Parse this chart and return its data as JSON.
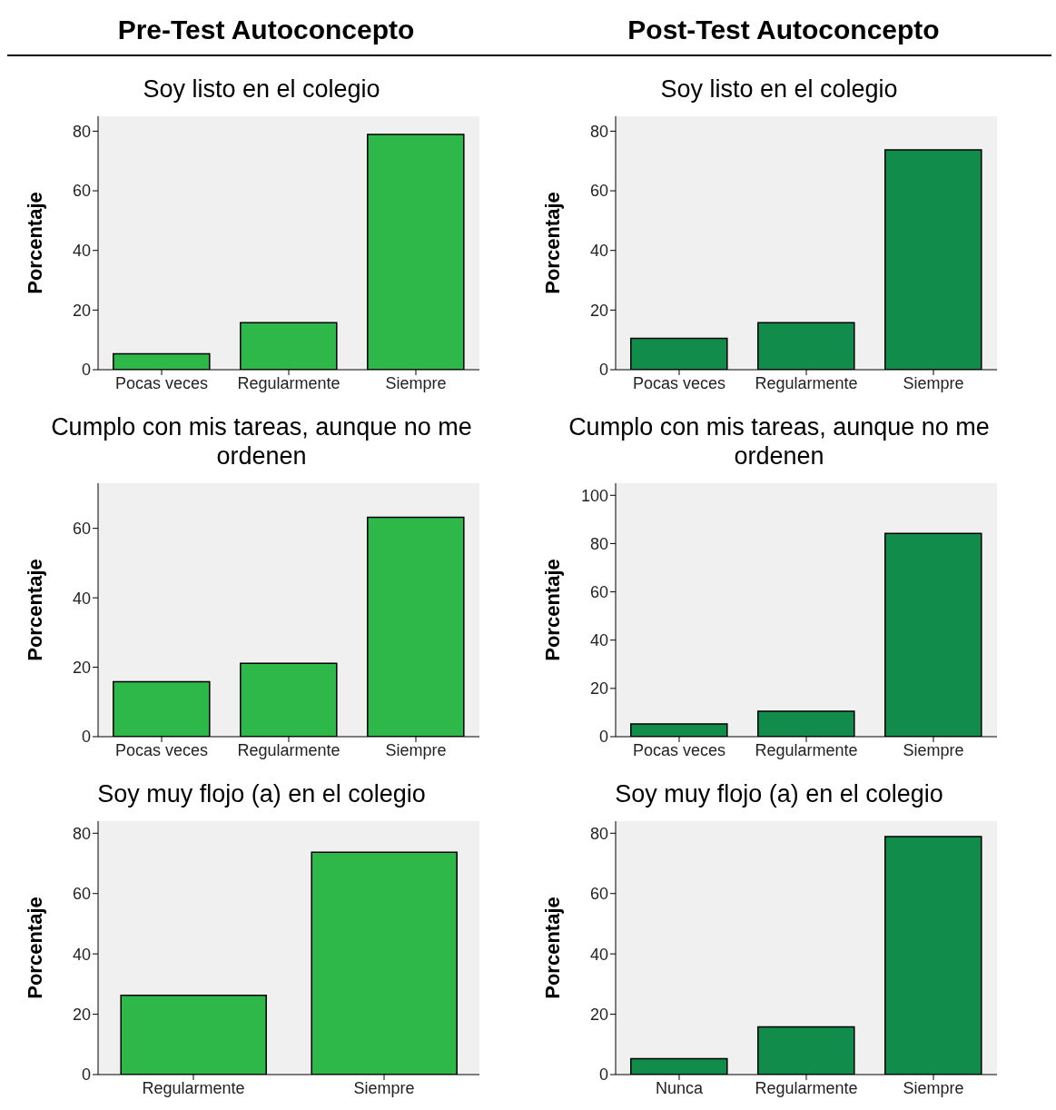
{
  "chart_data": [
    {
      "type": "bar",
      "subtitle": "Pre-Test Autoconcepto",
      "title": "Soy listo en el colegio",
      "ylabel": "Porcentaje",
      "categories": [
        "Pocas veces",
        "Regularmente",
        "Siempre"
      ],
      "values": [
        5.3,
        15.8,
        78.9
      ],
      "color": "#2eb84a",
      "ylim": [
        0,
        85
      ],
      "yticks": [
        0,
        20,
        40,
        60,
        80
      ],
      "grid": false
    },
    {
      "type": "bar",
      "subtitle": "Post-Test Autoconcepto",
      "title": "Soy listo en el colegio",
      "ylabel": "Porcentaje",
      "categories": [
        "Pocas veces",
        "Regularmente",
        "Siempre"
      ],
      "values": [
        10.5,
        15.8,
        73.7
      ],
      "color": "#118c4a",
      "ylim": [
        0,
        85
      ],
      "yticks": [
        0,
        20,
        40,
        60,
        80
      ],
      "grid": false
    },
    {
      "type": "bar",
      "title": "Cumplo con mis tareas, aunque no me ordenen",
      "ylabel": "Porcentaje",
      "categories": [
        "Pocas veces",
        "Regularmente",
        "Siempre"
      ],
      "values": [
        15.8,
        21.1,
        63.2
      ],
      "color": "#2eb84a",
      "ylim": [
        0,
        73
      ],
      "yticks": [
        0,
        20,
        40,
        60
      ],
      "grid": false
    },
    {
      "type": "bar",
      "title": "Cumplo con mis tareas, aunque no me ordenen",
      "ylabel": "Porcentaje",
      "categories": [
        "Pocas veces",
        "Regularmente",
        "Siempre"
      ],
      "values": [
        5.3,
        10.5,
        84.2
      ],
      "color": "#118c4a",
      "ylim": [
        0,
        105
      ],
      "yticks": [
        0,
        20,
        40,
        60,
        80,
        100
      ],
      "grid": false
    },
    {
      "type": "bar",
      "title": "Soy muy  flojo (a)  en  el colegio",
      "ylabel": "Porcentaje",
      "categories": [
        "Regularmente",
        "Siempre"
      ],
      "values": [
        26.3,
        73.7
      ],
      "color": "#2eb84a",
      "ylim": [
        0,
        84
      ],
      "yticks": [
        0,
        20,
        40,
        60,
        80
      ],
      "grid": false
    },
    {
      "type": "bar",
      "title": "Soy muy  flojo (a)  en  el colegio",
      "ylabel": "Porcentaje",
      "categories": [
        "Nunca",
        "Regularmente",
        "Siempre"
      ],
      "values": [
        5.3,
        15.8,
        78.9
      ],
      "color": "#118c4a",
      "ylim": [
        0,
        84
      ],
      "yticks": [
        0,
        20,
        40,
        60,
        80
      ],
      "grid": false
    }
  ]
}
